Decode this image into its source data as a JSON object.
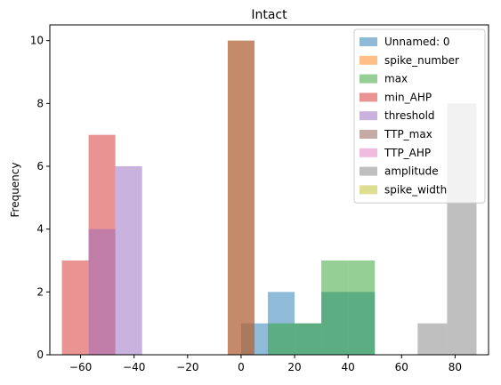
{
  "chart_data": {
    "type": "histogram",
    "title": "Intact",
    "xlabel": "",
    "ylabel": "Frequency",
    "xlim": [
      -71.5,
      92.5
    ],
    "ylim": [
      0,
      10.5
    ],
    "xticks": [
      -60,
      -40,
      -20,
      0,
      20,
      40,
      60,
      80
    ],
    "yticks": [
      0,
      2,
      4,
      6,
      8,
      10
    ],
    "legend_position": "upper right",
    "bar_alpha": 0.5,
    "series": [
      {
        "name": "Unnamed: 0",
        "color": "#1f77b4",
        "bins": [
          [
            0,
            10,
            1
          ],
          [
            10,
            20,
            2
          ],
          [
            20,
            30,
            1
          ],
          [
            30,
            40,
            2
          ],
          [
            40,
            50,
            2
          ]
        ]
      },
      {
        "name": "spike_number",
        "color": "#ff7f0e",
        "bins": [
          [
            -5,
            5,
            10
          ]
        ]
      },
      {
        "name": "max",
        "color": "#2ca02c",
        "bins": [
          [
            10,
            20,
            1
          ],
          [
            20,
            30,
            1
          ],
          [
            30,
            40,
            3
          ],
          [
            40,
            50,
            3
          ]
        ]
      },
      {
        "name": "min_AHP",
        "color": "#d62728",
        "bins": [
          [
            -67,
            -57,
            3
          ],
          [
            -57,
            -47,
            7
          ]
        ]
      },
      {
        "name": "threshold",
        "color": "#9467bd",
        "bins": [
          [
            -57,
            -47,
            4
          ],
          [
            -47,
            -37,
            6
          ]
        ]
      },
      {
        "name": "TTP_max",
        "color": "#8c564b",
        "bins": [
          [
            -5,
            5,
            10
          ]
        ]
      },
      {
        "name": "TTP_AHP",
        "color": "#e377c2",
        "bins": []
      },
      {
        "name": "amplitude",
        "color": "#7f7f7f",
        "bins": [
          [
            66,
            77,
            1
          ],
          [
            77,
            88,
            8
          ]
        ]
      },
      {
        "name": "spike_width",
        "color": "#bcbd22",
        "bins": []
      }
    ]
  }
}
